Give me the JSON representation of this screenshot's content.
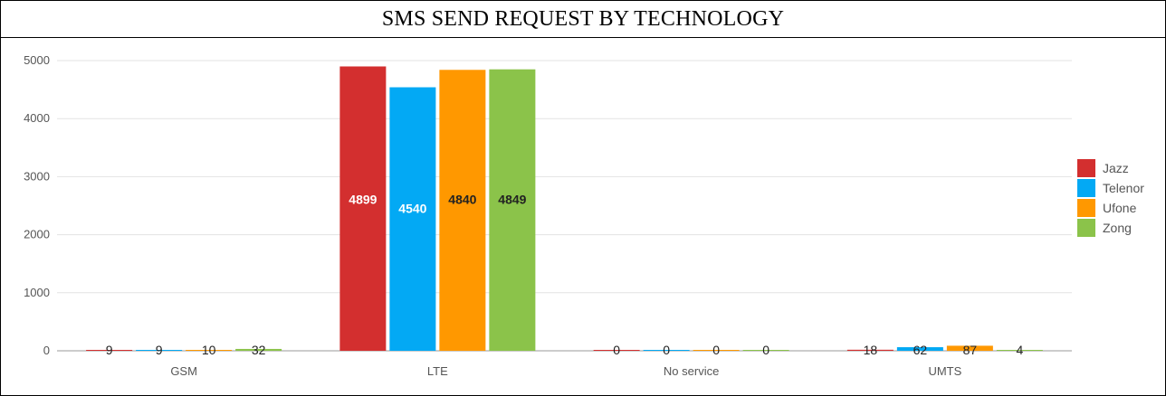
{
  "chart_data": {
    "type": "bar",
    "title": "SMS SEND REQUEST BY TECHNOLOGY",
    "categories": [
      "GSM",
      "LTE",
      "No service",
      "UMTS"
    ],
    "series": [
      {
        "name": "Jazz",
        "color": "#d32f2f",
        "values": [
          9,
          4899,
          0,
          18
        ]
      },
      {
        "name": "Telenor",
        "color": "#03a9f4",
        "values": [
          9,
          4540,
          0,
          62
        ]
      },
      {
        "name": "Ufone",
        "color": "#ff9800",
        "values": [
          10,
          4840,
          0,
          87
        ]
      },
      {
        "name": "Zong",
        "color": "#8bc34a",
        "values": [
          32,
          4849,
          0,
          4
        ]
      }
    ],
    "ylim": [
      0,
      5000
    ],
    "yticks": [
      0,
      1000,
      2000,
      3000,
      4000,
      5000
    ],
    "grid": true,
    "legend_position": "right"
  }
}
